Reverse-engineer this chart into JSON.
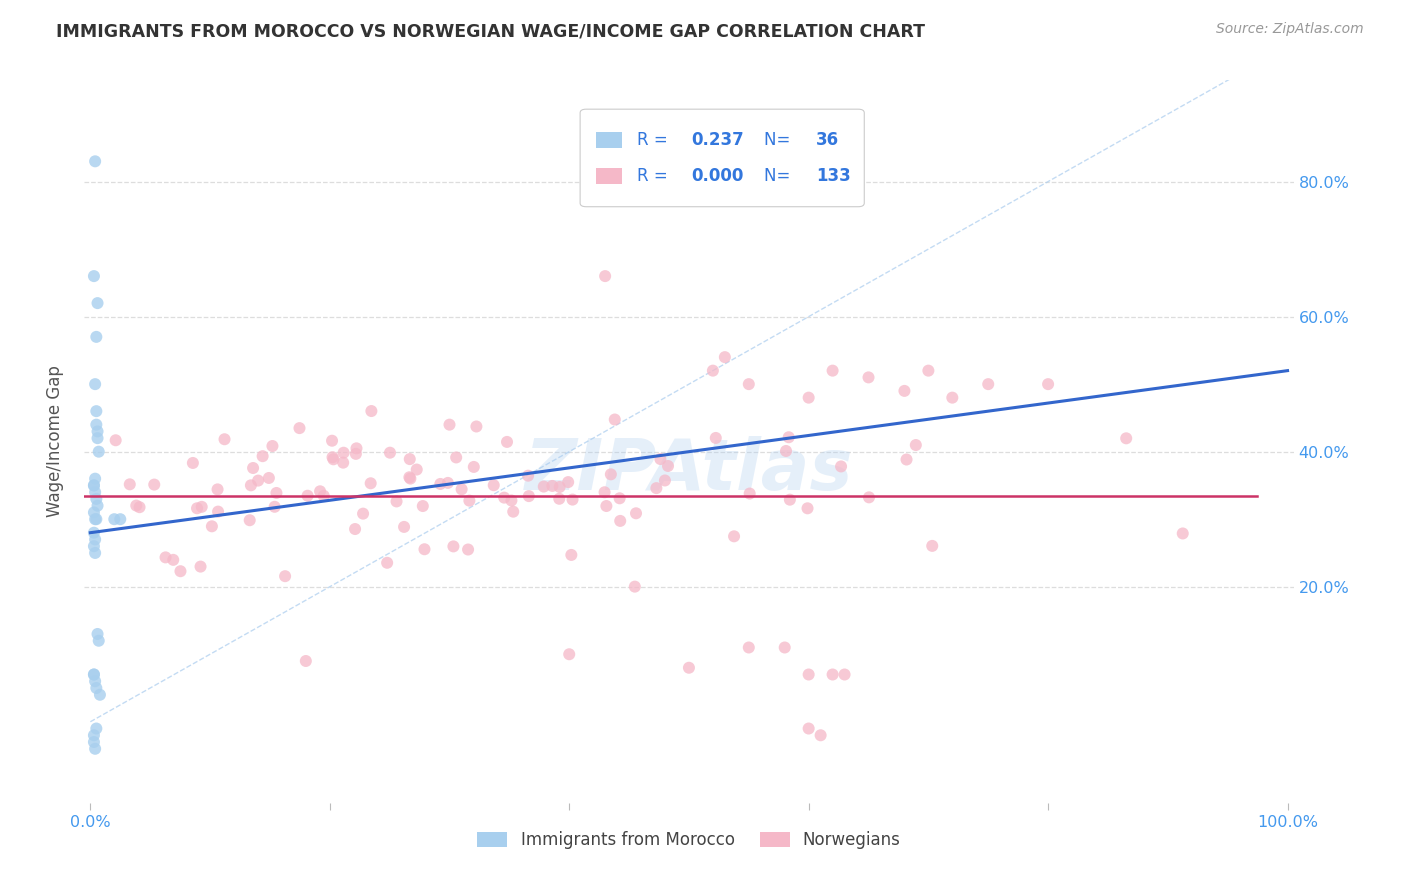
{
  "title": "IMMIGRANTS FROM MOROCCO VS NORWEGIAN WAGE/INCOME GAP CORRELATION CHART",
  "source": "Source: ZipAtlas.com",
  "ylabel": "Wage/Income Gap",
  "ytick_labels": [
    "20.0%",
    "40.0%",
    "60.0%",
    "80.0%"
  ],
  "ytick_values": [
    0.2,
    0.4,
    0.6,
    0.8
  ],
  "xlim": [
    -0.005,
    1.005
  ],
  "ylim": [
    -0.12,
    0.95
  ],
  "legend_blue_r": "0.237",
  "legend_blue_n": "36",
  "legend_pink_r": "0.000",
  "legend_pink_n": "133",
  "legend_label_blue": "Immigrants from Morocco",
  "legend_label_pink": "Norwegians",
  "color_blue": "#A8CFEE",
  "color_pink": "#F5B8C8",
  "color_line_blue": "#3366CC",
  "color_line_pink": "#CC3366",
  "color_axis_labels": "#4499EE",
  "color_legend_text": "#3377DD",
  "color_title": "#333333",
  "background_color": "#FFFFFF",
  "watermark": "ZIPAtlas",
  "diag_color": "#AACCEE",
  "grid_color": "#DDDDDD"
}
